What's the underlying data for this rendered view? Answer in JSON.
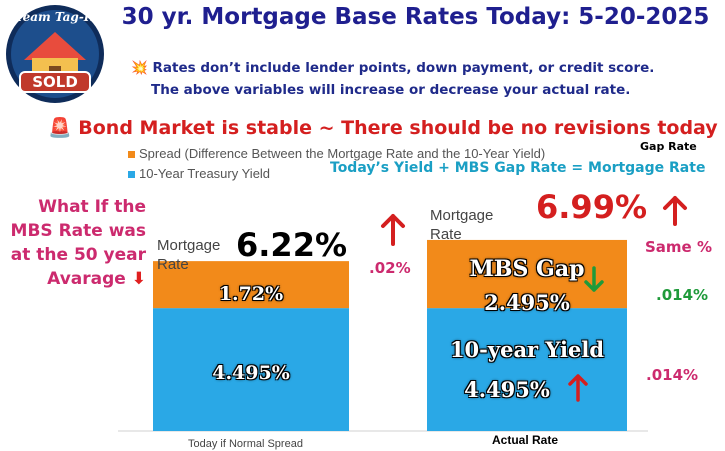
{
  "header": {
    "title": "30 yr. Mortgage Base Rates Today: 5-20-2025",
    "logo_text": [
      "Team Tag-It",
      "SOLD"
    ]
  },
  "notes": {
    "line1": "💥 Rates don’t include lender points, down payment, or credit score.",
    "line2": "The above variables will increase or decrease your actual rate.",
    "bond": "🚨 Bond Market is stable ~ There should be no revisions today"
  },
  "formula": "Today’s  Yield +  MBS Gap Rate = Mortgage Rate",
  "gap_rate_label": "Gap Rate",
  "what_if": [
    "What If the",
    "MBS Rate was",
    "at the 50 year",
    "Avarage"
  ],
  "left_bar": {
    "mortgage_label": [
      "Mortgage",
      "Rate"
    ],
    "rate": "6.22%",
    "spread": "1.72%",
    "yield": "4.495%",
    "change": ".02%",
    "category": "Today if Normal Spread"
  },
  "right_bar": {
    "mortgage_label": [
      "Mortgage",
      "Rate"
    ],
    "rate": "6.99%",
    "gap_title": "MBS Gap",
    "gap_value": "2.495%",
    "yield_title": "10-year Yield",
    "yield_value": "4.495%",
    "same": "Same %",
    "gap_change": ".014%",
    "yield_change": ".014%",
    "category": "Actual Rate"
  },
  "colors": {
    "spread": "#f28a1a",
    "yield": "#2aa8e6",
    "title": "#1f1f8f",
    "red": "#d41f1f",
    "green": "#1f9a3a"
  },
  "chart_data": {
    "type": "bar",
    "stacked": true,
    "categories": [
      "Today if Normal Spread",
      "Actual Rate"
    ],
    "series": [
      {
        "name": "10-Year Treasury Yield",
        "values": [
          4.495,
          4.495
        ]
      },
      {
        "name": "Spread (Difference Between the Mortgage Rate and the 10-Year Yield)",
        "values": [
          1.72,
          2.495
        ]
      }
    ],
    "totals": [
      6.22,
      6.99
    ],
    "ylim": [
      0,
      7.5
    ],
    "legend": "top-left"
  }
}
